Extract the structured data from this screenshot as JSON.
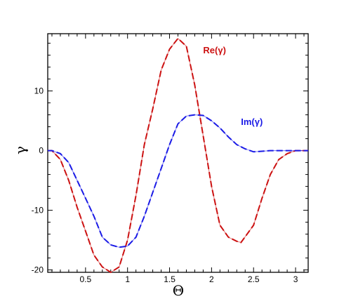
{
  "chart_data": {
    "type": "line",
    "title": "",
    "xlabel": "Θ",
    "ylabel": "γ",
    "xlim": [
      0.05,
      3.15
    ],
    "ylim": [
      -20.4,
      19.6
    ],
    "xticks": [
      0.5,
      1,
      1.5,
      2,
      2.5,
      3
    ],
    "xtick_labels": [
      "0.5",
      "1",
      "1.5",
      "2",
      "2.5",
      "3"
    ],
    "yticks": [
      -20,
      -10,
      0,
      10
    ],
    "ytick_labels": [
      "-20",
      "-10",
      "0",
      "10"
    ],
    "grid": false,
    "legend": "none",
    "line_style": "dashed",
    "series": [
      {
        "name": "Re(γ)",
        "color": "#cc1111",
        "x": [
          0.05,
          0.1,
          0.2,
          0.3,
          0.4,
          0.5,
          0.6,
          0.7,
          0.8,
          0.9,
          1.0,
          1.1,
          1.2,
          1.3,
          1.4,
          1.5,
          1.6,
          1.7,
          1.8,
          1.9,
          2.0,
          2.1,
          2.2,
          2.3,
          2.35,
          2.5,
          2.6,
          2.7,
          2.8,
          2.9,
          3.0,
          3.1,
          3.15
        ],
        "y": [
          0,
          0,
          -1.5,
          -5,
          -9.5,
          -13.5,
          -17.5,
          -19.5,
          -20.4,
          -19.5,
          -15,
          -7.5,
          1,
          7,
          13.5,
          17,
          18.8,
          17.5,
          11,
          2.5,
          -6,
          -12.5,
          -14.5,
          -15.2,
          -15.4,
          -12.5,
          -8,
          -4,
          -1.5,
          -0.5,
          0,
          0,
          0
        ]
      },
      {
        "name": "Im(γ)",
        "color": "#1a1ae6",
        "x": [
          0.05,
          0.1,
          0.2,
          0.3,
          0.4,
          0.5,
          0.6,
          0.7,
          0.8,
          0.9,
          1.0,
          1.1,
          1.2,
          1.3,
          1.4,
          1.5,
          1.6,
          1.7,
          1.8,
          1.9,
          2.0,
          2.1,
          2.2,
          2.3,
          2.4,
          2.5,
          2.6,
          2.7,
          2.8,
          2.9,
          3.0,
          3.1,
          3.15
        ],
        "y": [
          0,
          0,
          -0.5,
          -2,
          -5,
          -8,
          -11,
          -14.5,
          -15.8,
          -16.2,
          -16,
          -14.5,
          -11,
          -7,
          -3,
          1,
          4.5,
          5.8,
          6.0,
          5.9,
          5.0,
          3.8,
          2.3,
          1.0,
          0.3,
          -0.2,
          -0.1,
          0,
          0,
          0,
          0,
          0,
          0
        ]
      }
    ],
    "annotations": [
      {
        "text": "Re(γ)",
        "x": 1.9,
        "y": 16.3,
        "series": "Re(γ)"
      },
      {
        "text": "Im(γ)",
        "x": 2.35,
        "y": 4.3,
        "series": "Im(γ)"
      }
    ]
  }
}
